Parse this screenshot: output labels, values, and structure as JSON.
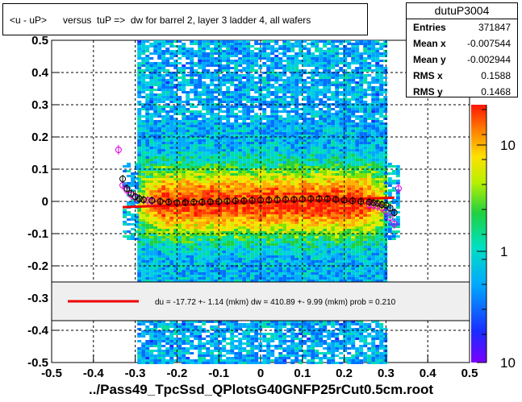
{
  "chart_data": {
    "type": "heatmap",
    "title": "<u - uP>      versus  tuP =>  dw for barrel 2, layer 3 ladder 4, all wafers",
    "footer": "../Pass49_TpcSsd_QPlotsG40GNFP25rCut0.5cm.root",
    "xlim": [
      -0.5,
      0.5
    ],
    "ylim": [
      -0.5,
      0.5
    ],
    "x_ticks": [
      "-0.5",
      "-0.4",
      "-0.3",
      "-0.2",
      "-0.1",
      "0",
      "0.1",
      "0.2",
      "0.3",
      "0.4",
      "0.5"
    ],
    "y_ticks": [
      "-0.5",
      "-0.4",
      "-0.3",
      "-0.2",
      "-0.1",
      "0",
      "0.1",
      "0.2",
      "0.3",
      "0.4",
      "0.5"
    ],
    "z_ticks": [
      "1",
      "10",
      "10"
    ],
    "grid": true,
    "stats": {
      "name": "dutuP3004",
      "rows": [
        {
          "label": "Entries",
          "value": "371847"
        },
        {
          "label": "Mean x",
          "value": "-0.007544"
        },
        {
          "label": "Mean y",
          "value": "-0.002944"
        },
        {
          "label": "RMS x",
          "value": "0.1588"
        },
        {
          "label": "RMS y",
          "value": "0.1468"
        }
      ]
    },
    "fit_legend": "du =  -17.72 +-  1.14 (mkm) dw =  410.89 +-  9.99 (mkm) prob = 0.210",
    "fit_line": {
      "x": [
        -0.33,
        0.32
      ],
      "y": [
        -0.0177,
        0.0115
      ]
    },
    "profile_black": {
      "x": [
        -0.33,
        -0.32,
        -0.31,
        -0.3,
        -0.29,
        -0.28,
        -0.26,
        -0.24,
        -0.22,
        -0.2,
        -0.18,
        -0.16,
        -0.14,
        -0.12,
        -0.1,
        -0.08,
        -0.06,
        -0.04,
        -0.02,
        0.0,
        0.02,
        0.04,
        0.06,
        0.08,
        0.1,
        0.12,
        0.14,
        0.16,
        0.18,
        0.2,
        0.22,
        0.24,
        0.26,
        0.27,
        0.28,
        0.29,
        0.3,
        0.31,
        0.32
      ],
      "y": [
        0.07,
        0.04,
        0.025,
        0.015,
        0.008,
        0.005,
        0.003,
        0.0,
        -0.002,
        -0.004,
        -0.003,
        -0.002,
        -0.002,
        -0.001,
        0.0,
        0.001,
        0.002,
        0.002,
        0.003,
        0.004,
        0.004,
        0.005,
        0.006,
        0.006,
        0.007,
        0.008,
        0.008,
        0.008,
        0.006,
        0.004,
        0.002,
        0.0,
        -0.002,
        -0.004,
        -0.006,
        -0.01,
        -0.012,
        -0.02,
        -0.035
      ]
    },
    "profile_magenta": {
      "x": [
        -0.34,
        -0.33,
        -0.32,
        -0.31,
        -0.3,
        -0.29,
        -0.28,
        -0.27,
        -0.26,
        0.26,
        0.27,
        0.28,
        0.29,
        0.3,
        0.31,
        0.32,
        0.33
      ],
      "y": [
        0.16,
        0.05,
        0.035,
        0.02,
        0.012,
        0.008,
        0.005,
        0.003,
        0.001,
        -0.01,
        -0.012,
        -0.015,
        -0.02,
        -0.03,
        -0.05,
        -0.07,
        0.04
      ]
    },
    "colors": {
      "fit": "#ee0000",
      "profile_black": "#000000",
      "profile_magenta": "#dd00dd",
      "plot_bg": "#ffffff"
    }
  }
}
